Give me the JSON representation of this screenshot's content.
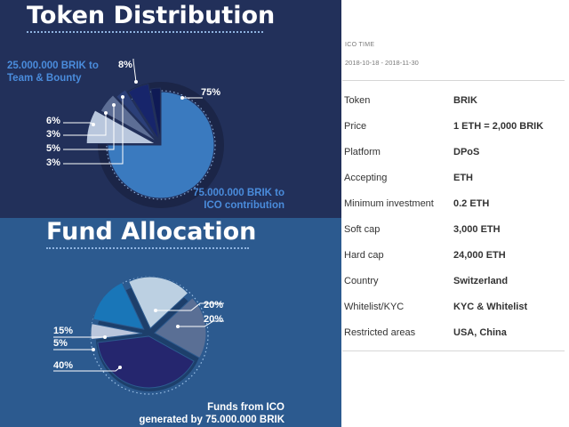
{
  "token_distribution": {
    "title": "Token Distribution",
    "team_label_line1": "25.000.000 BRIK to",
    "team_label_line2": "Team & Bounty",
    "ico_label_line1": "75.000.000 BRIK to",
    "ico_label_line2": "ICO contribution",
    "slice_labels": [
      "8%",
      "75%",
      "6%",
      "3%",
      "5%",
      "3%"
    ]
  },
  "fund_allocation": {
    "title": "Fund Allocation",
    "caption_line1": "Funds from ICO",
    "caption_line2": "generated by 75.000.000 BRIK",
    "slice_labels": [
      "20%",
      "20%",
      "15%",
      "5%",
      "40%"
    ]
  },
  "ico": {
    "title": "ICO TIME",
    "dates": "2018-10-18 - 2018-11-30",
    "rows": [
      {
        "key": "Token",
        "value": "BRIK"
      },
      {
        "key": "Price",
        "value": "1 ETH = 2,000 BRIK"
      },
      {
        "key": "Platform",
        "value": "DPoS"
      },
      {
        "key": "Accepting",
        "value": "ETH"
      },
      {
        "key": "Minimum investment",
        "value": "0.2 ETH"
      },
      {
        "key": "Soft cap",
        "value": "3,000 ETH"
      },
      {
        "key": "Hard cap",
        "value": "24,000 ETH"
      },
      {
        "key": "Country",
        "value": "Switzerland"
      },
      {
        "key": "Whitelist/KYC",
        "value": "KYC & Whitelist"
      },
      {
        "key": "Restricted areas",
        "value": "USA, China"
      }
    ]
  },
  "chart_data": [
    {
      "type": "pie",
      "title": "Token Distribution",
      "values": [
        75,
        8,
        5,
        3,
        6,
        3
      ],
      "labels": [
        "75%",
        "8%",
        "5%",
        "3%",
        "6%",
        "3%"
      ],
      "colors": [
        "#3a7abf",
        "#b9c7dd",
        "#5d6e95",
        "#2b3f78",
        "#17256b",
        "#0f1a55"
      ]
    },
    {
      "type": "pie",
      "title": "Fund Allocation",
      "values": [
        20,
        20,
        40,
        5,
        15
      ],
      "labels": [
        "20%",
        "20%",
        "40%",
        "5%",
        "15%"
      ],
      "colors": [
        "#bcd0e2",
        "#5a6f95",
        "#25266e",
        "#bac6dc",
        "#1976b8"
      ]
    }
  ]
}
